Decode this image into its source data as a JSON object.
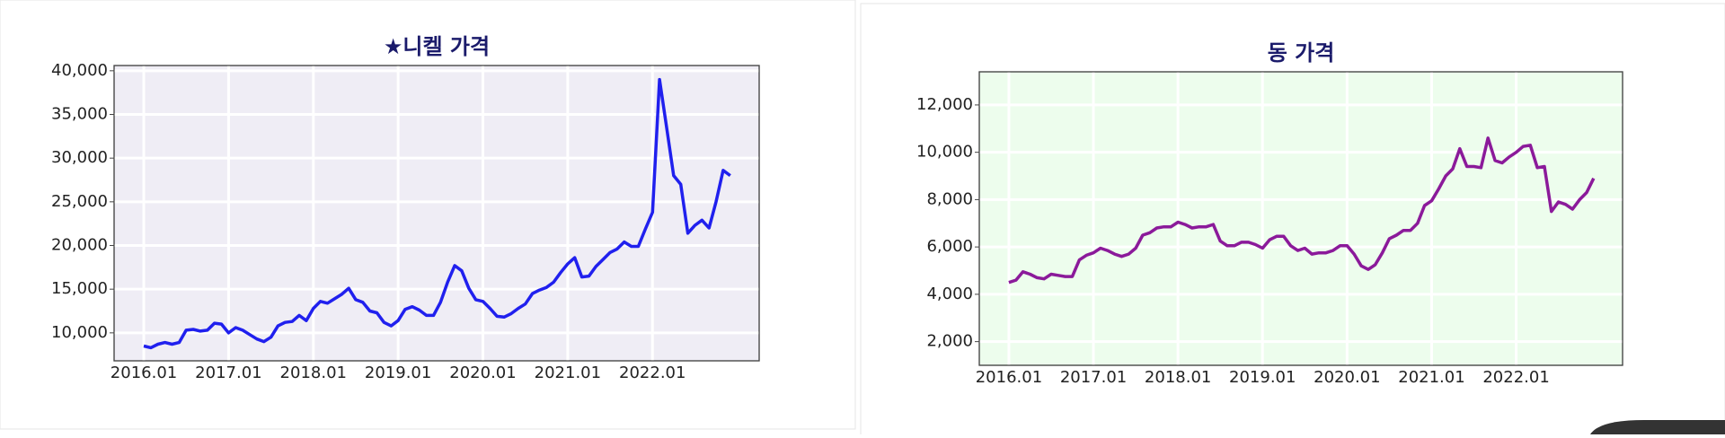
{
  "chart_data": [
    {
      "type": "line",
      "title": "★니켈 가격",
      "color": "#2020ee",
      "background": "#efedf5",
      "grid": true,
      "categories": [
        "2016.01",
        null,
        null,
        null,
        null,
        null,
        null,
        null,
        null,
        null,
        null,
        null,
        "2017.01",
        null,
        null,
        null,
        null,
        null,
        null,
        null,
        null,
        null,
        null,
        null,
        "2018.01",
        null,
        null,
        null,
        null,
        null,
        null,
        null,
        null,
        null,
        null,
        null,
        "2019.01",
        null,
        null,
        null,
        null,
        null,
        null,
        null,
        null,
        null,
        null,
        null,
        "2020.01",
        null,
        null,
        null,
        null,
        null,
        null,
        null,
        null,
        null,
        null,
        null,
        "2021.01",
        null,
        null,
        null,
        null,
        null,
        null,
        null,
        null,
        null,
        null,
        null,
        "2022.01",
        null,
        null,
        null,
        null,
        null,
        null,
        null,
        null,
        null,
        null,
        null
      ],
      "values": [
        8500,
        8300,
        8700,
        8900,
        8700,
        8900,
        10300,
        10400,
        10200,
        10300,
        11100,
        11000,
        10000,
        10600,
        10300,
        9800,
        9300,
        9000,
        9500,
        10800,
        11200,
        11300,
        12000,
        11400,
        12800,
        13600,
        13400,
        13900,
        14400,
        15100,
        13800,
        13500,
        12500,
        12300,
        11200,
        10800,
        11400,
        12700,
        13000,
        12600,
        12000,
        12000,
        13500,
        15800,
        17700,
        17100,
        15100,
        13800,
        13600,
        12800,
        11900,
        11800,
        12200,
        12800,
        13300,
        14500,
        14900,
        15200,
        15800,
        16900,
        17900,
        18600,
        16400,
        16500,
        17600,
        18400,
        19200,
        19600,
        20400,
        19900,
        19900,
        21900,
        23800,
        39000,
        33500,
        28000,
        27000,
        21400,
        22300,
        22900,
        22000,
        25000,
        28600,
        28000
      ],
      "ylim": [
        6800,
        40600
      ],
      "yticks": [
        {
          "value": 10000,
          "label": "10,000"
        },
        {
          "value": 15000,
          "label": "15,000"
        },
        {
          "value": 20000,
          "label": "20,000"
        },
        {
          "value": 25000,
          "label": "25,000"
        },
        {
          "value": 30000,
          "label": "30,000"
        },
        {
          "value": 35000,
          "label": "35,000"
        },
        {
          "value": 40000,
          "label": "40,000"
        }
      ]
    },
    {
      "type": "line",
      "title": "동 가격",
      "color": "#8b1a9a",
      "background": "#edfded",
      "grid": true,
      "categories": [
        "2016.01",
        null,
        null,
        null,
        null,
        null,
        null,
        null,
        null,
        null,
        null,
        null,
        "2017.01",
        null,
        null,
        null,
        null,
        null,
        null,
        null,
        null,
        null,
        null,
        null,
        "2018.01",
        null,
        null,
        null,
        null,
        null,
        null,
        null,
        null,
        null,
        null,
        null,
        "2019.01",
        null,
        null,
        null,
        null,
        null,
        null,
        null,
        null,
        null,
        null,
        null,
        "2020.01",
        null,
        null,
        null,
        null,
        null,
        null,
        null,
        null,
        null,
        null,
        null,
        "2021.01",
        null,
        null,
        null,
        null,
        null,
        null,
        null,
        null,
        null,
        null,
        null,
        "2022.01",
        null,
        null,
        null,
        null,
        null,
        null,
        null,
        null,
        null,
        null,
        null
      ],
      "values": [
        4500,
        4600,
        4950,
        4850,
        4700,
        4650,
        4850,
        4800,
        4750,
        4750,
        5450,
        5650,
        5750,
        5950,
        5850,
        5700,
        5600,
        5700,
        5950,
        6500,
        6600,
        6800,
        6850,
        6850,
        7050,
        6950,
        6800,
        6850,
        6850,
        6950,
        6250,
        6050,
        6050,
        6200,
        6200,
        6100,
        5950,
        6300,
        6450,
        6450,
        6050,
        5850,
        5950,
        5700,
        5750,
        5750,
        5850,
        6050,
        6050,
        5700,
        5200,
        5050,
        5250,
        5750,
        6350,
        6500,
        6700,
        6700,
        7000,
        7750,
        7950,
        8450,
        9000,
        9300,
        10150,
        9400,
        9400,
        9350,
        10600,
        9650,
        9550,
        9800,
        10000,
        10250,
        10300,
        9350,
        9400,
        7500,
        7900,
        7800,
        7600,
        8000,
        8300,
        8900
      ],
      "ylim": [
        1000,
        13400
      ],
      "yticks": [
        {
          "value": 2000,
          "label": "2,000"
        },
        {
          "value": 4000,
          "label": "4,000"
        },
        {
          "value": 6000,
          "label": "6,000"
        },
        {
          "value": 8000,
          "label": "8,000"
        },
        {
          "value": 10000,
          "label": "10,000"
        },
        {
          "value": 12000,
          "label": "12,000"
        }
      ]
    }
  ]
}
